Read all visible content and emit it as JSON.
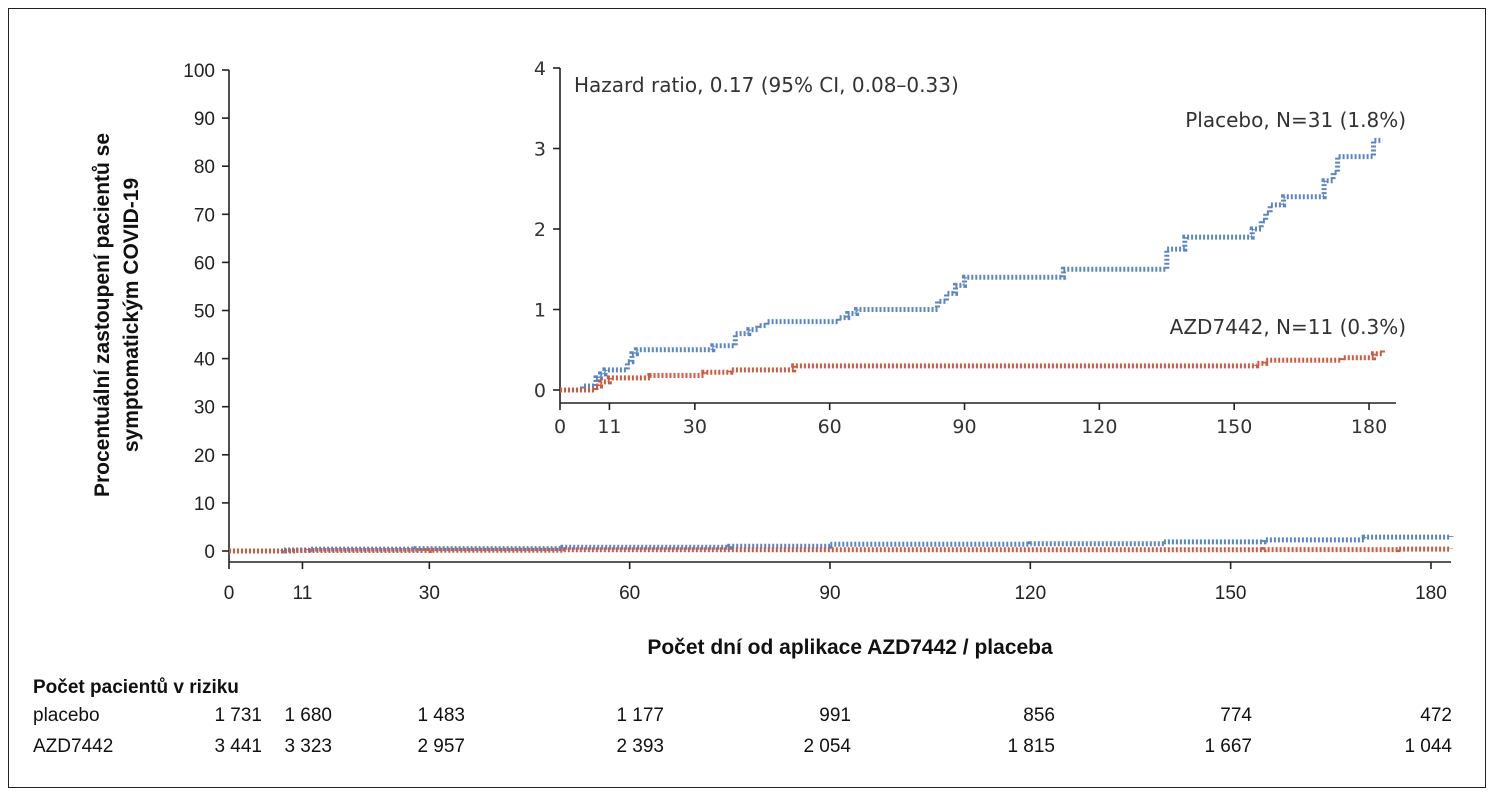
{
  "chart_data": [
    {
      "type": "line",
      "ylabel": "Procentuální zastoupení pacientů se symptomatickým COVID-19",
      "xlabel": "Počet dní od aplikace AZD7442 / placeba",
      "xlim": [
        0,
        183
      ],
      "ylim": [
        0,
        100
      ],
      "xticks": [
        0,
        11,
        30,
        60,
        90,
        120,
        150,
        180
      ],
      "yticks": [
        0,
        10,
        20,
        30,
        40,
        50,
        60,
        70,
        80,
        90,
        100
      ],
      "series": [
        {
          "name": "Placebo",
          "color": "#5b86c5",
          "x": [
            0,
            8,
            12,
            28,
            50,
            75,
            90,
            120,
            140,
            155,
            170,
            183
          ],
          "y": [
            0,
            0.2,
            0.4,
            0.5,
            0.8,
            1.0,
            1.4,
            1.5,
            1.9,
            2.3,
            2.9,
            3.1
          ]
        },
        {
          "name": "AZD7442",
          "color": "#d05a40",
          "x": [
            0,
            10,
            30,
            50,
            100,
            155,
            175,
            183
          ],
          "y": [
            0,
            0.1,
            0.15,
            0.25,
            0.25,
            0.3,
            0.4,
            0.5
          ]
        }
      ]
    },
    {
      "type": "line",
      "annotation": "Hazard ratio, 0.17 (95% CI, 0.08–0.33)",
      "xlim": [
        0,
        186
      ],
      "ylim": [
        0,
        4
      ],
      "xticks": [
        0,
        11,
        30,
        60,
        90,
        120,
        150,
        180
      ],
      "yticks": [
        0,
        1,
        2,
        3,
        4
      ],
      "series": [
        {
          "name": "Placebo, N=31 (1.8%)",
          "color": "#5b86c5",
          "points": [
            [
              0,
              0
            ],
            [
              5,
              0.05
            ],
            [
              8,
              0.15
            ],
            [
              9,
              0.2
            ],
            [
              10,
              0.25
            ],
            [
              15,
              0.35
            ],
            [
              16,
              0.45
            ],
            [
              17,
              0.5
            ],
            [
              34,
              0.55
            ],
            [
              39,
              0.7
            ],
            [
              42,
              0.75
            ],
            [
              44,
              0.8
            ],
            [
              46,
              0.85
            ],
            [
              62,
              0.9
            ],
            [
              64,
              0.95
            ],
            [
              66,
              1.0
            ],
            [
              84,
              1.1
            ],
            [
              86,
              1.2
            ],
            [
              88,
              1.3
            ],
            [
              90,
              1.4
            ],
            [
              112,
              1.5
            ],
            [
              135,
              1.75
            ],
            [
              139,
              1.9
            ],
            [
              154,
              2.0
            ],
            [
              156,
              2.1
            ],
            [
              157,
              2.2
            ],
            [
              158,
              2.3
            ],
            [
              161,
              2.4
            ],
            [
              170,
              2.6
            ],
            [
              172,
              2.7
            ],
            [
              173,
              2.9
            ],
            [
              181,
              3.1
            ],
            [
              183,
              3.1
            ]
          ]
        },
        {
          "name": "AZD7442, N=11 (0.3%)",
          "color": "#d05a40",
          "points": [
            [
              0,
              0
            ],
            [
              8,
              0.05
            ],
            [
              9,
              0.1
            ],
            [
              11,
              0.15
            ],
            [
              20,
              0.18
            ],
            [
              32,
              0.22
            ],
            [
              38,
              0.25
            ],
            [
              52,
              0.3
            ],
            [
              155,
              0.33
            ],
            [
              157,
              0.37
            ],
            [
              174,
              0.4
            ],
            [
              181,
              0.45
            ],
            [
              183,
              0.5
            ]
          ]
        }
      ]
    }
  ],
  "risk_table": {
    "title": "Počet pacientů v riziku",
    "rows": [
      {
        "label": "placebo",
        "values": [
          "1 731",
          "1 680",
          "1 483",
          "1 177",
          "991",
          "856",
          "774",
          "472"
        ]
      },
      {
        "label": "AZD7442",
        "values": [
          "3 441",
          "3 323",
          "2 957",
          "2 393",
          "2 054",
          "1 815",
          "1 667",
          "1 044"
        ]
      }
    ]
  }
}
